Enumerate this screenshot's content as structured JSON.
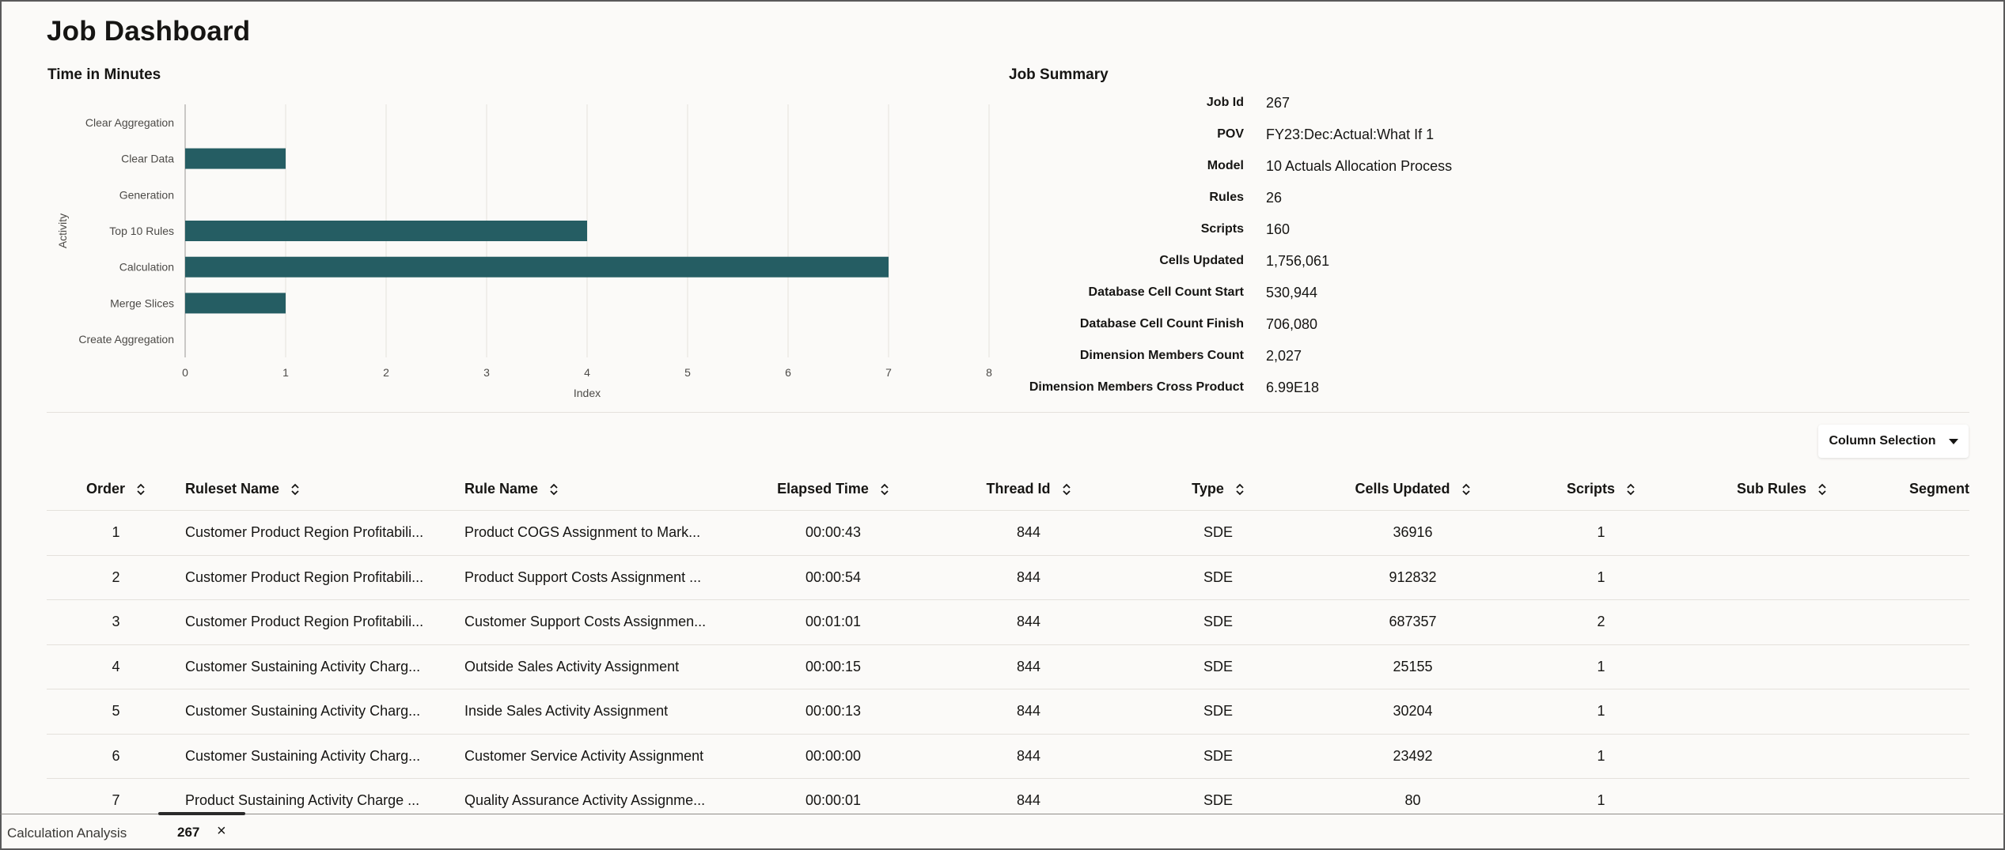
{
  "page": {
    "title": "Job Dashboard"
  },
  "chart_section": {
    "title": "Time in Minutes"
  },
  "chart_data": {
    "type": "bar",
    "orientation": "horizontal",
    "categories": [
      "Clear Aggregation",
      "Clear Data",
      "Generation",
      "Top 10 Rules",
      "Calculation",
      "Merge Slices",
      "Create Aggregation"
    ],
    "values": [
      0,
      1,
      0,
      4,
      7,
      1,
      0
    ],
    "xlabel": "Index",
    "ylabel": "Activity",
    "xlim": [
      0,
      8
    ],
    "xticks": [
      "0",
      "1",
      "2",
      "3",
      "4",
      "5",
      "6",
      "7",
      "8"
    ],
    "grid": true,
    "bar_color": "#255d63"
  },
  "summary": {
    "title": "Job Summary",
    "rows": [
      {
        "label": "Job Id",
        "value": "267"
      },
      {
        "label": "POV",
        "value": "FY23:Dec:Actual:What If 1"
      },
      {
        "label": "Model",
        "value": "10 Actuals Allocation Process"
      },
      {
        "label": "Rules",
        "value": "26"
      },
      {
        "label": "Scripts",
        "value": "160"
      },
      {
        "label": "Cells Updated",
        "value": "1,756,061"
      },
      {
        "label": "Database Cell Count Start",
        "value": "530,944"
      },
      {
        "label": "Database Cell Count Finish",
        "value": "706,080"
      },
      {
        "label": "Dimension Members Count",
        "value": "2,027"
      },
      {
        "label": "Dimension Members Cross Product",
        "value": "6.99E18"
      }
    ]
  },
  "column_selection": {
    "label": "Column Selection"
  },
  "table": {
    "columns": [
      "Order",
      "Ruleset Name",
      "Rule Name",
      "Elapsed Time",
      "Thread Id",
      "Type",
      "Cells Updated",
      "Scripts",
      "Sub Rules",
      "Segment"
    ],
    "rows": [
      [
        "1",
        "Customer Product Region Profitabili...",
        "Product COGS Assignment to Mark...",
        "00:00:43",
        "844",
        "SDE",
        "36916",
        "1",
        "",
        ""
      ],
      [
        "2",
        "Customer Product Region Profitabili...",
        "Product Support Costs Assignment ...",
        "00:00:54",
        "844",
        "SDE",
        "912832",
        "1",
        "",
        ""
      ],
      [
        "3",
        "Customer Product Region Profitabili...",
        "Customer Support Costs Assignmen...",
        "00:01:01",
        "844",
        "SDE",
        "687357",
        "2",
        "",
        ""
      ],
      [
        "4",
        "Customer Sustaining Activity Charg...",
        "Outside Sales Activity Assignment",
        "00:00:15",
        "844",
        "SDE",
        "25155",
        "1",
        "",
        ""
      ],
      [
        "5",
        "Customer Sustaining Activity Charg...",
        "Inside Sales Activity Assignment",
        "00:00:13",
        "844",
        "SDE",
        "30204",
        "1",
        "",
        ""
      ],
      [
        "6",
        "Customer Sustaining Activity Charg...",
        "Customer Service Activity Assignment",
        "00:00:00",
        "844",
        "SDE",
        "23492",
        "1",
        "",
        ""
      ],
      [
        "7",
        "Product Sustaining Activity Charge ...",
        "Quality Assurance Activity Assignme...",
        "00:00:01",
        "844",
        "SDE",
        "80",
        "1",
        "",
        ""
      ]
    ]
  },
  "tabbar": {
    "label": "Calculation Analysis",
    "job_id": "267",
    "close": "×"
  },
  "colors": {
    "bar": "#255d63",
    "background": "#fbfaf8",
    "grid": "#e4e1dc"
  },
  "icons": {
    "sort": "sort-icon",
    "dropdown": "chevron-down-icon",
    "close": "close-icon"
  }
}
